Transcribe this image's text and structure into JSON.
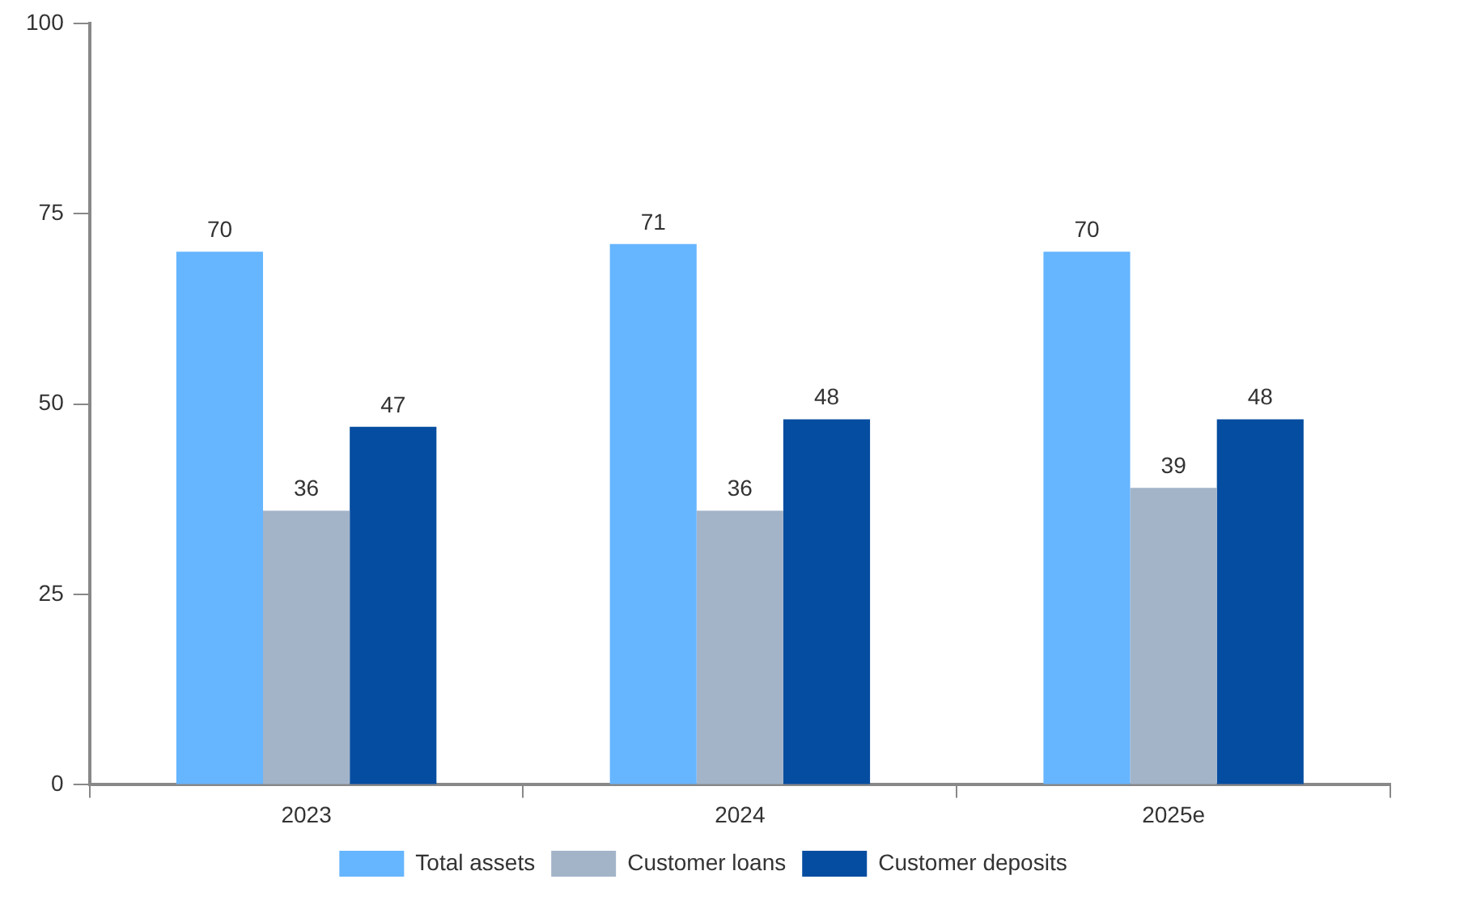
{
  "chart_data": {
    "type": "bar",
    "categories": [
      "2023",
      "2024",
      "2025e"
    ],
    "series": [
      {
        "name": "Total assets",
        "color": "#66b5ff",
        "values": [
          70,
          71,
          70
        ]
      },
      {
        "name": "Customer loans",
        "color": "#a3b4c9",
        "values": [
          36,
          36,
          39
        ]
      },
      {
        "name": "Customer deposits",
        "color": "#054da0",
        "values": [
          47,
          48,
          48
        ]
      }
    ],
    "ylim": [
      0,
      100
    ],
    "yticks": [
      0,
      25,
      50,
      75,
      100
    ],
    "grid": false,
    "legend": "bottom",
    "data_labels": true
  }
}
